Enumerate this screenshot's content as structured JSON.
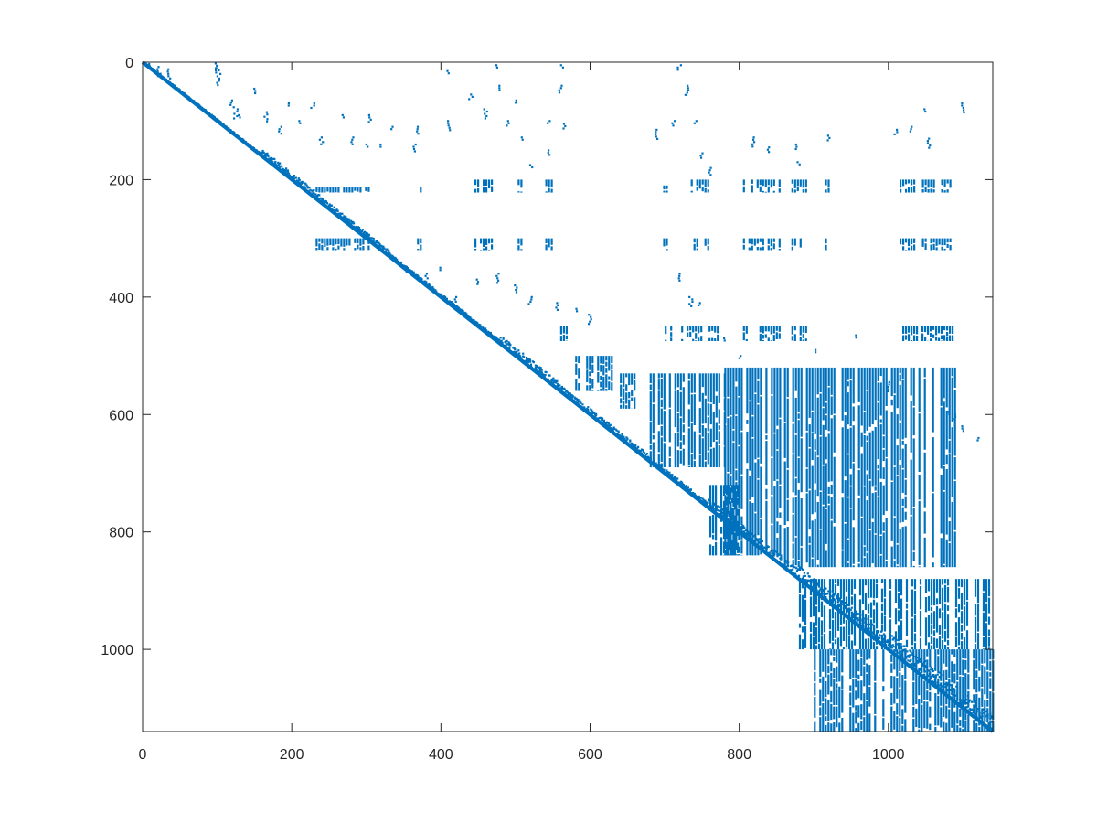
{
  "chart_data": {
    "type": "scatter",
    "title": "",
    "xlabel": "",
    "ylabel": "",
    "xlim": [
      0,
      1140
    ],
    "ylim": [
      0,
      1140
    ],
    "y_axis_reversed": true,
    "grid": false,
    "legend": "none",
    "color": "#0072BD",
    "x_ticks": [
      0,
      200,
      400,
      600,
      800,
      1000
    ],
    "y_ticks": [
      0,
      200,
      400,
      600,
      800,
      1000
    ],
    "x_tick_labels": [
      "0",
      "200",
      "400",
      "600",
      "800",
      "1000"
    ],
    "y_tick_labels": [
      "0",
      "200",
      "400",
      "600",
      "800",
      "1000"
    ],
    "diagonal": [
      0,
      1140
    ],
    "near_diagonal_band": [
      [
        0,
        40,
        2
      ],
      [
        40,
        160,
        3
      ],
      [
        160,
        240,
        12
      ],
      [
        240,
        330,
        10
      ],
      [
        330,
        480,
        6
      ],
      [
        480,
        560,
        14
      ],
      [
        560,
        680,
        10
      ],
      [
        680,
        760,
        8
      ],
      [
        760,
        880,
        16
      ],
      [
        880,
        1000,
        22
      ],
      [
        1000,
        1140,
        30
      ]
    ],
    "blocks": [
      {
        "cols": [
          232,
          305
        ],
        "rows": [
          212,
          222
        ]
      },
      {
        "cols": [
          232,
          305
        ],
        "rows": [
          300,
          320
        ]
      },
      {
        "cols": [
          368,
          374
        ],
        "rows": [
          212,
          222
        ]
      },
      {
        "cols": [
          368,
          374
        ],
        "rows": [
          300,
          320
        ]
      },
      {
        "cols": [
          445,
          470
        ],
        "rows": [
          200,
          222
        ]
      },
      {
        "cols": [
          445,
          470
        ],
        "rows": [
          300,
          320
        ]
      },
      {
        "cols": [
          503,
          508
        ],
        "rows": [
          200,
          222
        ]
      },
      {
        "cols": [
          503,
          508
        ],
        "rows": [
          300,
          320
        ]
      },
      {
        "cols": [
          540,
          550
        ],
        "rows": [
          200,
          222
        ]
      },
      {
        "cols": [
          540,
          550
        ],
        "rows": [
          300,
          320
        ]
      },
      {
        "cols": [
          698,
          703
        ],
        "rows": [
          210,
          222
        ]
      },
      {
        "cols": [
          698,
          703
        ],
        "rows": [
          300,
          320
        ]
      },
      {
        "cols": [
          735,
          760
        ],
        "rows": [
          200,
          222
        ]
      },
      {
        "cols": [
          735,
          760
        ],
        "rows": [
          300,
          320
        ]
      },
      {
        "cols": [
          805,
          855
        ],
        "rows": [
          200,
          222
        ]
      },
      {
        "cols": [
          805,
          855
        ],
        "rows": [
          300,
          320
        ]
      },
      {
        "cols": [
          870,
          890
        ],
        "rows": [
          200,
          222
        ]
      },
      {
        "cols": [
          870,
          890
        ],
        "rows": [
          300,
          320
        ]
      },
      {
        "cols": [
          915,
          920
        ],
        "rows": [
          200,
          222
        ]
      },
      {
        "cols": [
          915,
          920
        ],
        "rows": [
          300,
          320
        ]
      },
      {
        "cols": [
          1015,
          1035
        ],
        "rows": [
          200,
          222
        ]
      },
      {
        "cols": [
          1015,
          1035
        ],
        "rows": [
          300,
          320
        ]
      },
      {
        "cols": [
          1045,
          1085
        ],
        "rows": [
          200,
          222
        ]
      },
      {
        "cols": [
          1045,
          1085
        ],
        "rows": [
          300,
          320
        ]
      },
      {
        "cols": [
          560,
          570
        ],
        "rows": [
          450,
          475
        ]
      },
      {
        "cols": [
          700,
          770
        ],
        "rows": [
          450,
          475
        ]
      },
      {
        "cols": [
          805,
          855
        ],
        "rows": [
          450,
          475
        ]
      },
      {
        "cols": [
          870,
          890
        ],
        "rows": [
          450,
          475
        ]
      },
      {
        "cols": [
          1015,
          1085
        ],
        "rows": [
          450,
          475
        ]
      },
      {
        "cols": [
          580,
          630
        ],
        "rows": [
          500,
          560
        ]
      },
      {
        "cols": [
          640,
          660
        ],
        "rows": [
          530,
          590
        ]
      },
      {
        "cols": [
          680,
          780
        ],
        "rows": [
          530,
          690
        ]
      },
      {
        "cols": [
          780,
          860
        ],
        "rows": [
          520,
          840
        ]
      },
      {
        "cols": [
          860,
          1090
        ],
        "rows": [
          520,
          860
        ]
      },
      {
        "cols": [
          760,
          800
        ],
        "rows": [
          720,
          840
        ]
      },
      {
        "cols": [
          880,
          1140
        ],
        "rows": [
          880,
          1000
        ]
      },
      {
        "cols": [
          900,
          1140
        ],
        "rows": [
          1000,
          1140
        ]
      }
    ],
    "scattered_points": [
      [
        10,
        3
      ],
      [
        22,
        8
      ],
      [
        35,
        12
      ],
      [
        98,
        2
      ],
      [
        100,
        10
      ],
      [
        102,
        20
      ],
      [
        100,
        35
      ],
      [
        120,
        65
      ],
      [
        125,
        80
      ],
      [
        130,
        90
      ],
      [
        150,
        45
      ],
      [
        165,
        85
      ],
      [
        185,
        110
      ],
      [
        195,
        70
      ],
      [
        210,
        100
      ],
      [
        228,
        70
      ],
      [
        240,
        128
      ],
      [
        268,
        90
      ],
      [
        280,
        128
      ],
      [
        305,
        90
      ],
      [
        300,
        140
      ],
      [
        320,
        140
      ],
      [
        335,
        110
      ],
      [
        370,
        110
      ],
      [
        365,
        140
      ],
      [
        410,
        15
      ],
      [
        410,
        100
      ],
      [
        440,
        55
      ],
      [
        460,
        80
      ],
      [
        475,
        5
      ],
      [
        480,
        40
      ],
      [
        490,
        100
      ],
      [
        500,
        65
      ],
      [
        510,
        128
      ],
      [
        520,
        175
      ],
      [
        545,
        100
      ],
      [
        545,
        150
      ],
      [
        562,
        5
      ],
      [
        560,
        40
      ],
      [
        565,
        105
      ],
      [
        690,
        115
      ],
      [
        712,
        100
      ],
      [
        720,
        5
      ],
      [
        730,
        40
      ],
      [
        740,
        100
      ],
      [
        750,
        155
      ],
      [
        760,
        180
      ],
      [
        820,
        128
      ],
      [
        840,
        145
      ],
      [
        875,
        140
      ],
      [
        880,
        170
      ],
      [
        920,
        125
      ],
      [
        1010,
        115
      ],
      [
        1030,
        110
      ],
      [
        1050,
        80
      ],
      [
        1100,
        70
      ],
      [
        1055,
        130
      ],
      [
        355,
        350
      ],
      [
        380,
        360
      ],
      [
        400,
        350
      ],
      [
        420,
        400
      ],
      [
        450,
        370
      ],
      [
        475,
        360
      ],
      [
        500,
        380
      ],
      [
        520,
        400
      ],
      [
        555,
        410
      ],
      [
        580,
        420
      ],
      [
        600,
        430
      ],
      [
        720,
        360
      ],
      [
        735,
        400
      ],
      [
        745,
        410
      ],
      [
        780,
        470
      ],
      [
        800,
        500
      ],
      [
        900,
        490
      ],
      [
        955,
        465
      ],
      [
        1000,
        545
      ],
      [
        1090,
        600
      ],
      [
        1100,
        620
      ],
      [
        1120,
        640
      ],
      [
        1080,
        595
      ]
    ]
  }
}
